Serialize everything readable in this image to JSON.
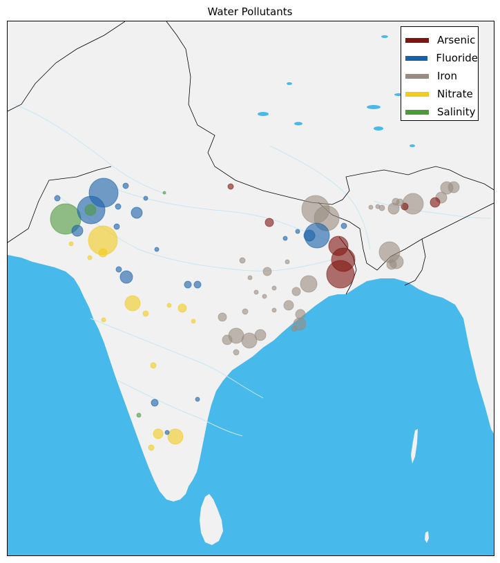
{
  "title": "Water Pollutants",
  "colors": {
    "ocean": "#47b9ea",
    "land": "#f1f1f1",
    "river": "#c9e6f5",
    "border": "#000000"
  },
  "legend": [
    {
      "label": "Arsenic",
      "color": "#7f1510"
    },
    {
      "label": "Fluoride",
      "color": "#1860a8"
    },
    {
      "label": "Iron",
      "color": "#9a8c80"
    },
    {
      "label": "Nitrate",
      "color": "#f2cc1c"
    },
    {
      "label": "Salinity",
      "color": "#4d9a3c"
    }
  ]
}
